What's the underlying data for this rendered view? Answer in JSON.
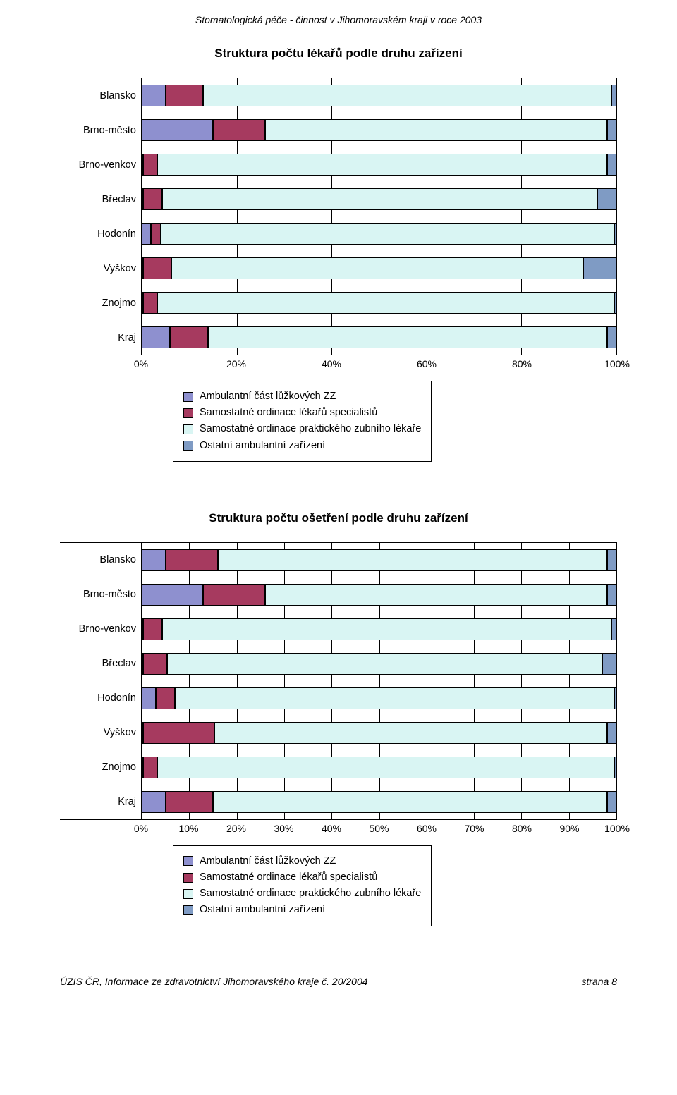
{
  "doc_header": "Stomatologická péče - činnost v Jihomoravském kraji v roce 2003",
  "colors": {
    "s1": "#8e90cf",
    "s2": "#a63a5f",
    "s3": "#d9f5f3",
    "s4": "#7f9bc4",
    "grid": "#000000",
    "bg": "#ffffff"
  },
  "chart1": {
    "title": "Struktura počtu lékařů podle druhu zařízení",
    "type": "stacked-bar-100",
    "categories": [
      "Blansko",
      "Brno-město",
      "Brno-venkov",
      "Břeclav",
      "Hodonín",
      "Vyškov",
      "Znojmo",
      "Kraj"
    ],
    "series": [
      {
        "name": "Ambulantní část lůžkových ZZ",
        "color": "#8e90cf"
      },
      {
        "name": "Samostatné ordinace lékařů specialistů",
        "color": "#a63a5f"
      },
      {
        "name": "Samostatné ordinace praktického zubního lékaře",
        "color": "#d9f5f3"
      },
      {
        "name": "Ostatní ambulantní zařízení",
        "color": "#7f9bc4"
      }
    ],
    "values": [
      [
        5,
        8,
        86,
        1
      ],
      [
        15,
        11,
        72,
        2
      ],
      [
        0,
        3,
        95,
        2
      ],
      [
        0,
        4,
        92,
        4
      ],
      [
        2,
        2,
        95.5,
        0.5
      ],
      [
        0,
        6,
        87,
        7
      ],
      [
        0,
        3,
        96.5,
        0.5
      ],
      [
        6,
        8,
        84,
        2
      ]
    ],
    "xticks": [
      0,
      20,
      40,
      60,
      80,
      100
    ],
    "xtick_labels": [
      "0%",
      "20%",
      "40%",
      "60%",
      "80%",
      "100%"
    ],
    "label_fontsize": 14.5,
    "title_fontsize": 17
  },
  "chart2": {
    "title": "Struktura počtu ošetření podle druhu zařízení",
    "type": "stacked-bar-100",
    "categories": [
      "Blansko",
      "Brno-město",
      "Brno-venkov",
      "Břeclav",
      "Hodonín",
      "Vyškov",
      "Znojmo",
      "Kraj"
    ],
    "series": [
      {
        "name": "Ambulantní část lůžkových ZZ",
        "color": "#8e90cf"
      },
      {
        "name": "Samostatné ordinace lékařů specialistů",
        "color": "#a63a5f"
      },
      {
        "name": "Samostatné ordinace praktického zubního lékaře",
        "color": "#d9f5f3"
      },
      {
        "name": "Ostatní ambulantní zařízení",
        "color": "#7f9bc4"
      }
    ],
    "values": [
      [
        5,
        11,
        82,
        2
      ],
      [
        13,
        13,
        72,
        2
      ],
      [
        0,
        4,
        95,
        1
      ],
      [
        0,
        5,
        92,
        3
      ],
      [
        3,
        4,
        92.5,
        0.5
      ],
      [
        0,
        15,
        83,
        2
      ],
      [
        0,
        3,
        96.5,
        0.5
      ],
      [
        5,
        10,
        83,
        2
      ]
    ],
    "xticks": [
      0,
      10,
      20,
      30,
      40,
      50,
      60,
      70,
      80,
      90,
      100
    ],
    "xtick_labels": [
      "0%",
      "10%",
      "20%",
      "30%",
      "40%",
      "50%",
      "60%",
      "70%",
      "80%",
      "90%",
      "100%"
    ],
    "label_fontsize": 14.5,
    "title_fontsize": 17
  },
  "footer_left": "ÚZIS ČR, Informace ze zdravotnictví Jihomoravského kraje č. 20/2004",
  "footer_right": "strana 8"
}
